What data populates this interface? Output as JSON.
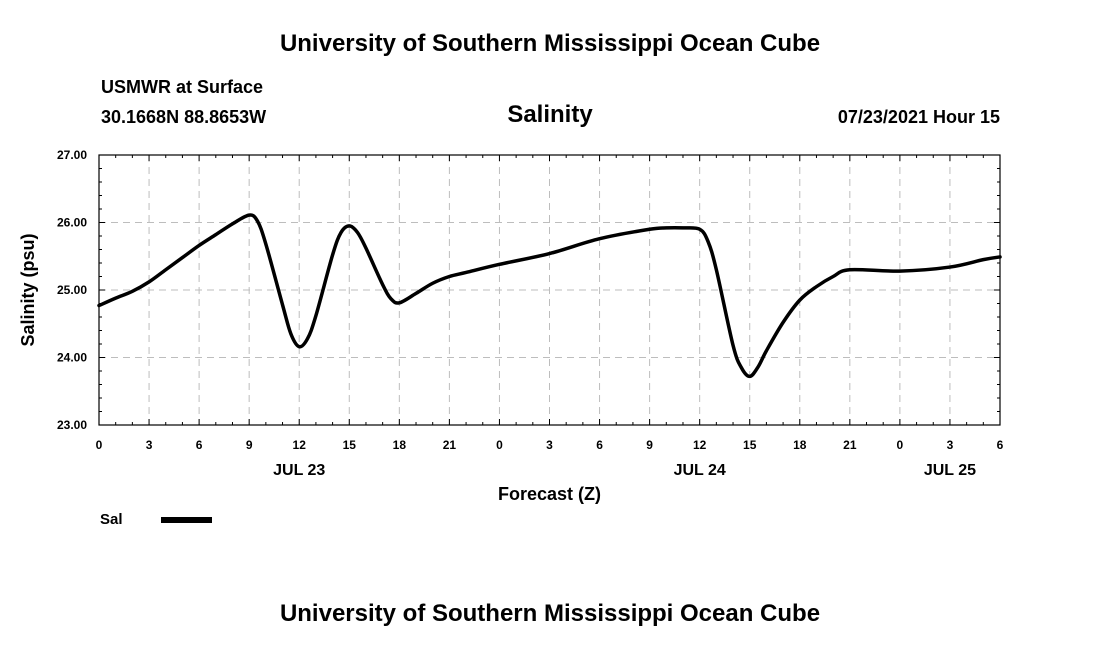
{
  "header": {
    "title_top": "University of Southern Mississippi Ocean Cube",
    "title_bottom": "University of Southern Mississippi Ocean Cube",
    "station": "USMWR at Surface",
    "coords": "30.1668N  88.8653W",
    "variable": "Salinity",
    "datetime": "07/23/2021 Hour 15"
  },
  "colors": {
    "line": "#000000",
    "grid": "#bdbdbd",
    "background": "#ffffff"
  },
  "chart_data": {
    "type": "line",
    "title": "Salinity",
    "xlabel": "Forecast (Z)",
    "ylabel": "Salinity (psu)",
    "xlim": [
      0,
      54
    ],
    "ylim": [
      23.0,
      27.0
    ],
    "x_ticks": [
      0,
      3,
      6,
      9,
      12,
      15,
      18,
      21,
      24,
      27,
      30,
      33,
      36,
      39,
      42,
      45,
      48,
      51,
      54
    ],
    "x_tick_labels": [
      "0",
      "3",
      "6",
      "9",
      "12",
      "15",
      "18",
      "21",
      "0",
      "3",
      "6",
      "9",
      "12",
      "15",
      "18",
      "21",
      "0",
      "3",
      "6"
    ],
    "y_ticks": [
      23.0,
      24.0,
      25.0,
      26.0,
      27.0
    ],
    "y_tick_labels": [
      "23.00",
      "24.00",
      "25.00",
      "26.00",
      "27.00"
    ],
    "date_labels": [
      {
        "x": 12,
        "label": "JUL 23"
      },
      {
        "x": 36,
        "label": "JUL 24"
      },
      {
        "x": 51,
        "label": "JUL 25"
      }
    ],
    "grid": true,
    "legend": {
      "position": "bottom-left",
      "entries": [
        {
          "name": "Sal"
        }
      ]
    },
    "series": [
      {
        "name": "Sal",
        "x": [
          0,
          1,
          2,
          3,
          4,
          5,
          6,
          7,
          8,
          9,
          9.5,
          10,
          11,
          11.5,
          12,
          12.5,
          13,
          14,
          14.5,
          15,
          15.5,
          16,
          17,
          17.5,
          18,
          19,
          20,
          21,
          22,
          24,
          27,
          30,
          33,
          34,
          35,
          36,
          36.5,
          37,
          38,
          38.5,
          39,
          39.5,
          40,
          41,
          42,
          43,
          44,
          45,
          48,
          51,
          53,
          54
        ],
        "values": [
          24.77,
          24.88,
          24.98,
          25.12,
          25.3,
          25.48,
          25.66,
          25.82,
          25.98,
          26.11,
          26.02,
          25.68,
          24.78,
          24.35,
          24.16,
          24.28,
          24.62,
          25.52,
          25.85,
          25.95,
          25.85,
          25.62,
          25.08,
          24.87,
          24.81,
          24.95,
          25.1,
          25.2,
          25.26,
          25.38,
          25.54,
          25.76,
          25.9,
          25.92,
          25.92,
          25.9,
          25.72,
          25.3,
          24.18,
          23.85,
          23.72,
          23.86,
          24.1,
          24.52,
          24.85,
          25.05,
          25.2,
          25.3,
          25.28,
          25.34,
          25.45,
          25.49
        ]
      }
    ]
  }
}
